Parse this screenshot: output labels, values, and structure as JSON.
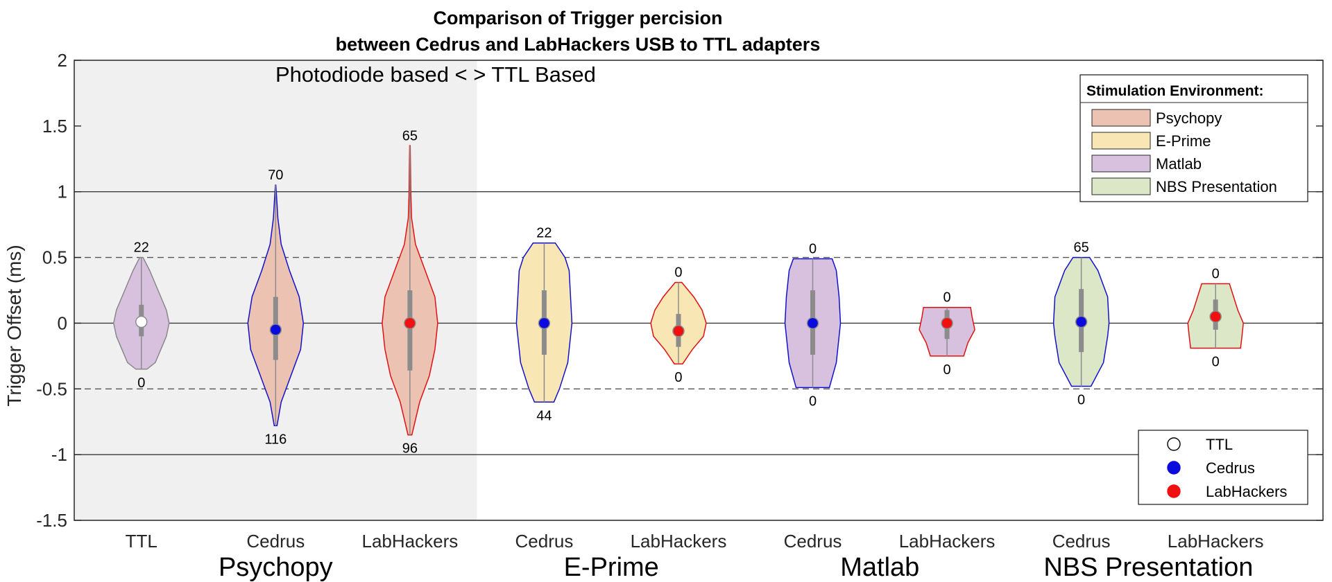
{
  "chart_data": {
    "type": "violin",
    "title": [
      "Comparison of Trigger percision",
      "between Cedrus and LabHackers USB to TTL adapters"
    ],
    "ylabel": "Trigger Offset (ms)",
    "ylim": [
      -1.5,
      2
    ],
    "yticks": [
      -1.5,
      -1,
      -0.5,
      0,
      0.5,
      1,
      1.5,
      2
    ],
    "ytick_labels": [
      "-1.5",
      "-1",
      "-0.5",
      "0",
      "0.5",
      "1",
      "1.5",
      "2"
    ],
    "solid_hlines": [
      -1,
      0,
      1
    ],
    "dashed_hlines": [
      -0.5,
      0.5
    ],
    "shaded_region_label": "Photodiode based < > TTL Based",
    "groups": [
      {
        "label": "Psychopy",
        "positions": [
          1,
          2,
          3
        ]
      },
      {
        "label": "E-Prime",
        "positions": [
          4,
          5
        ]
      },
      {
        "label": "Matlab",
        "positions": [
          6,
          7
        ]
      },
      {
        "label": "NBS Presentation",
        "positions": [
          8,
          9
        ]
      }
    ],
    "violins": [
      {
        "category": "TTL",
        "environment": "Matlab",
        "adapter": "TTL",
        "edge_color": "#888888",
        "median": 0.01,
        "q1": -0.1,
        "q3": 0.14,
        "top_count": "22",
        "bottom_count": "0",
        "profile": [
          [
            -0.35,
            0.2
          ],
          [
            -0.3,
            0.5
          ],
          [
            -0.2,
            0.7
          ],
          [
            -0.1,
            0.9
          ],
          [
            0,
            1.0
          ],
          [
            0.1,
            0.9
          ],
          [
            0.2,
            0.7
          ],
          [
            0.3,
            0.5
          ],
          [
            0.4,
            0.3
          ],
          [
            0.5,
            0.06
          ]
        ]
      },
      {
        "category": "Cedrus",
        "environment": "Psychopy",
        "adapter": "Cedrus",
        "edge_color": "#1010cc",
        "median": -0.05,
        "q1": -0.28,
        "q3": 0.2,
        "top_count": "70",
        "bottom_count": "116",
        "profile": [
          [
            -0.78,
            0.05
          ],
          [
            -0.6,
            0.2
          ],
          [
            -0.4,
            0.55
          ],
          [
            -0.2,
            0.9
          ],
          [
            0,
            1.0
          ],
          [
            0.2,
            0.85
          ],
          [
            0.4,
            0.5
          ],
          [
            0.6,
            0.2
          ],
          [
            0.8,
            0.08
          ],
          [
            1.05,
            0.01
          ]
        ]
      },
      {
        "category": "LabHackers",
        "environment": "Psychopy",
        "adapter": "LabHackers",
        "edge_color": "#e01010",
        "median": 0,
        "q1": -0.36,
        "q3": 0.25,
        "top_count": "65",
        "bottom_count": "96",
        "profile": [
          [
            -0.85,
            0.07
          ],
          [
            -0.6,
            0.35
          ],
          [
            -0.4,
            0.7
          ],
          [
            -0.2,
            0.9
          ],
          [
            0,
            1.0
          ],
          [
            0.2,
            0.9
          ],
          [
            0.4,
            0.55
          ],
          [
            0.6,
            0.2
          ],
          [
            0.8,
            0.06
          ],
          [
            1.0,
            0.03
          ],
          [
            1.2,
            0.02
          ],
          [
            1.35,
            0.01
          ]
        ]
      },
      {
        "category": "Cedrus",
        "environment": "E-Prime",
        "adapter": "Cedrus",
        "edge_color": "#1010cc",
        "median": 0,
        "q1": -0.24,
        "q3": 0.25,
        "top_count": "22",
        "bottom_count": "44",
        "profile": [
          [
            -0.6,
            0.35
          ],
          [
            -0.5,
            0.55
          ],
          [
            -0.3,
            0.85
          ],
          [
            -0.1,
            0.95
          ],
          [
            0,
            1.0
          ],
          [
            0.2,
            0.95
          ],
          [
            0.4,
            0.9
          ],
          [
            0.5,
            0.75
          ],
          [
            0.61,
            0.4
          ]
        ]
      },
      {
        "category": "LabHackers",
        "environment": "E-Prime",
        "adapter": "LabHackers",
        "edge_color": "#e01010",
        "median": -0.06,
        "q1": -0.18,
        "q3": 0.07,
        "top_count": "0",
        "bottom_count": "0",
        "profile": [
          [
            -0.31,
            0.15
          ],
          [
            -0.2,
            0.5
          ],
          [
            -0.1,
            0.9
          ],
          [
            0,
            1.0
          ],
          [
            0.1,
            0.85
          ],
          [
            0.2,
            0.55
          ],
          [
            0.31,
            0.12
          ]
        ]
      },
      {
        "category": "Cedrus",
        "environment": "Matlab",
        "adapter": "Cedrus",
        "edge_color": "#1010cc",
        "median": 0,
        "q1": -0.24,
        "q3": 0.25,
        "top_count": "0",
        "bottom_count": "0",
        "profile": [
          [
            -0.49,
            0.6
          ],
          [
            -0.3,
            0.85
          ],
          [
            -0.1,
            0.95
          ],
          [
            0,
            1.0
          ],
          [
            0.2,
            0.95
          ],
          [
            0.4,
            0.85
          ],
          [
            0.49,
            0.7
          ]
        ]
      },
      {
        "category": "LabHackers",
        "environment": "Matlab",
        "adapter": "LabHackers",
        "edge_color": "#e01010",
        "median": 0,
        "q1": -0.12,
        "q3": 0.1,
        "top_count": "0",
        "bottom_count": "0",
        "profile": [
          [
            -0.25,
            0.6
          ],
          [
            -0.15,
            0.75
          ],
          [
            -0.05,
            1.0
          ],
          [
            0.05,
            0.9
          ],
          [
            0.12,
            0.85
          ]
        ]
      },
      {
        "category": "Cedrus",
        "environment": "NBS Presentation",
        "adapter": "Cedrus",
        "edge_color": "#1010cc",
        "median": 0.01,
        "q1": -0.22,
        "q3": 0.26,
        "top_count": "65",
        "bottom_count": "0",
        "profile": [
          [
            -0.48,
            0.35
          ],
          [
            -0.3,
            0.8
          ],
          [
            -0.1,
            0.95
          ],
          [
            0,
            1.0
          ],
          [
            0.2,
            0.95
          ],
          [
            0.4,
            0.6
          ],
          [
            0.5,
            0.3
          ]
        ]
      },
      {
        "category": "LabHackers",
        "environment": "NBS Presentation",
        "adapter": "LabHackers",
        "edge_color": "#e01010",
        "median": 0.05,
        "q1": -0.05,
        "q3": 0.18,
        "top_count": "0",
        "bottom_count": "0",
        "profile": [
          [
            -0.19,
            0.9
          ],
          [
            -0.1,
            0.95
          ],
          [
            0,
            1.0
          ],
          [
            0.1,
            0.8
          ],
          [
            0.2,
            0.65
          ],
          [
            0.3,
            0.5
          ]
        ]
      }
    ],
    "environment_colors": {
      "Psychopy": "#ecc3b2",
      "E-Prime": "#f9e6b5",
      "Matlab": "#d8c1df",
      "NBS Presentation": "#dbe7c6"
    },
    "adapter_colors": {
      "TTL": "#ffffff",
      "Cedrus": "#0b0bdd",
      "LabHackers": "#f01010"
    },
    "legend_environment": {
      "title": "Stimulation Environment:",
      "entries": [
        "Psychopy",
        "E-Prime",
        "Matlab",
        "NBS Presentation"
      ],
      "placement": "top-right"
    },
    "legend_adapter": {
      "entries": [
        "TTL",
        "Cedrus",
        "LabHackers"
      ],
      "placement": "bottom-right"
    },
    "shade_color": "#f0f0f0"
  }
}
